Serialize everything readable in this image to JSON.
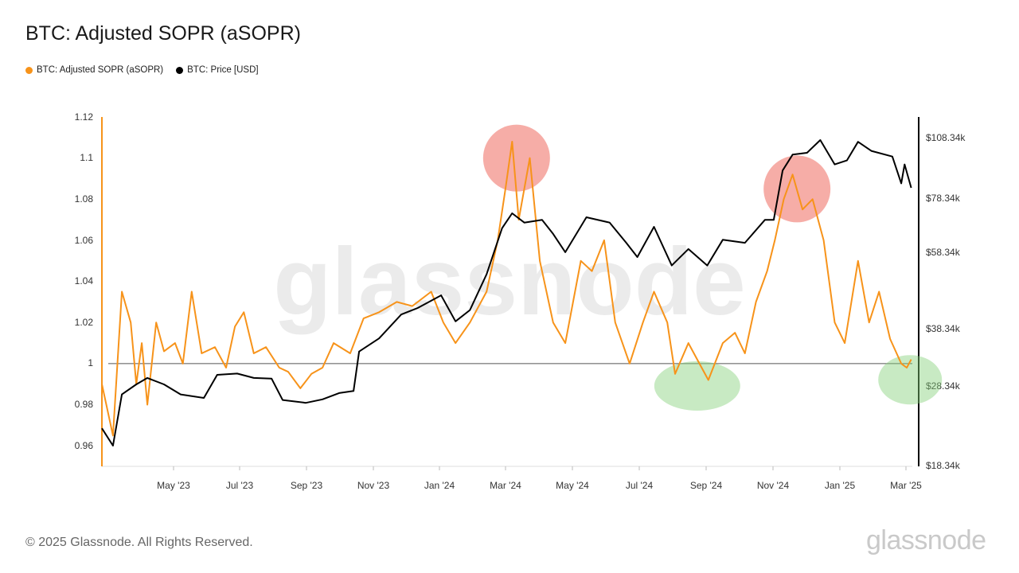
{
  "header": {
    "title": "BTC: Adjusted SOPR (aSOPR)"
  },
  "colors": {
    "sopr": "#f7931a",
    "price": "#000000",
    "high_marker": "#ee6a5f",
    "low_marker": "#84d07a",
    "baseline": "#555555"
  },
  "footer": {
    "copyright": "© 2025 Glassnode. All Rights Reserved.",
    "brand": "glassnode"
  },
  "watermark": "glassnode",
  "chart_data": {
    "type": "line",
    "title": "BTC: Adjusted SOPR (aSOPR)",
    "legend_position": "top-left",
    "grid": false,
    "x_ticks": [
      "May '23",
      "Jul '23",
      "Sep '23",
      "Nov '23",
      "Jan '24",
      "Mar '24",
      "May '24",
      "Jul '24",
      "Sep '24",
      "Nov '24",
      "Jan '25",
      "Mar '25"
    ],
    "x_range": [
      "2023-03-10",
      "2025-03-10"
    ],
    "y_left": {
      "ticks": [
        "1.12",
        "1.1",
        "1.08",
        "1.06",
        "1.04",
        "1.02",
        "1",
        "0.98",
        "0.96"
      ],
      "range": [
        0.95,
        1.12
      ]
    },
    "y_right": {
      "ticks": [
        "$108.34k",
        "$78.34k",
        "$58.34k",
        "$38.34k",
        "$28.34k",
        "$18.34k"
      ],
      "scale": "log",
      "range": [
        18340,
        120000
      ]
    },
    "reference_line": 1,
    "series": [
      {
        "name": "BTC: Adjusted SOPR (aSOPR)",
        "axis": "left",
        "points": [
          [
            "2023-03-10",
            0.99
          ],
          [
            "2023-03-20",
            0.965
          ],
          [
            "2023-03-28",
            1.035
          ],
          [
            "2023-04-05",
            1.02
          ],
          [
            "2023-04-10",
            0.99
          ],
          [
            "2023-04-15",
            1.01
          ],
          [
            "2023-04-20",
            0.98
          ],
          [
            "2023-04-28",
            1.02
          ],
          [
            "2023-05-05",
            1.006
          ],
          [
            "2023-05-15",
            1.01
          ],
          [
            "2023-05-22",
            1.0
          ],
          [
            "2023-05-30",
            1.035
          ],
          [
            "2023-06-08",
            1.005
          ],
          [
            "2023-06-20",
            1.008
          ],
          [
            "2023-06-30",
            0.998
          ],
          [
            "2023-07-08",
            1.018
          ],
          [
            "2023-07-16",
            1.025
          ],
          [
            "2023-07-25",
            1.005
          ],
          [
            "2023-08-05",
            1.008
          ],
          [
            "2023-08-17",
            0.998
          ],
          [
            "2023-08-25",
            0.996
          ],
          [
            "2023-09-05",
            0.988
          ],
          [
            "2023-09-15",
            0.995
          ],
          [
            "2023-09-25",
            0.998
          ],
          [
            "2023-10-05",
            1.01
          ],
          [
            "2023-10-20",
            1.005
          ],
          [
            "2023-11-01",
            1.022
          ],
          [
            "2023-11-15",
            1.025
          ],
          [
            "2023-12-01",
            1.03
          ],
          [
            "2023-12-15",
            1.028
          ],
          [
            "2024-01-01",
            1.035
          ],
          [
            "2024-01-12",
            1.02
          ],
          [
            "2024-01-23",
            1.01
          ],
          [
            "2024-02-05",
            1.02
          ],
          [
            "2024-02-20",
            1.035
          ],
          [
            "2024-03-01",
            1.06
          ],
          [
            "2024-03-08",
            1.085
          ],
          [
            "2024-03-14",
            1.108
          ],
          [
            "2024-03-20",
            1.07
          ],
          [
            "2024-03-30",
            1.1
          ],
          [
            "2024-04-08",
            1.05
          ],
          [
            "2024-04-20",
            1.02
          ],
          [
            "2024-05-01",
            1.01
          ],
          [
            "2024-05-15",
            1.05
          ],
          [
            "2024-05-25",
            1.045
          ],
          [
            "2024-06-05",
            1.06
          ],
          [
            "2024-06-15",
            1.02
          ],
          [
            "2024-06-28",
            1.0
          ],
          [
            "2024-07-10",
            1.02
          ],
          [
            "2024-07-20",
            1.035
          ],
          [
            "2024-08-01",
            1.02
          ],
          [
            "2024-08-08",
            0.995
          ],
          [
            "2024-08-20",
            1.01
          ],
          [
            "2024-08-30",
            1.0
          ],
          [
            "2024-09-07",
            0.992
          ],
          [
            "2024-09-20",
            1.01
          ],
          [
            "2024-10-01",
            1.015
          ],
          [
            "2024-10-10",
            1.005
          ],
          [
            "2024-10-20",
            1.03
          ],
          [
            "2024-10-30",
            1.045
          ],
          [
            "2024-11-06",
            1.06
          ],
          [
            "2024-11-14",
            1.08
          ],
          [
            "2024-11-22",
            1.092
          ],
          [
            "2024-12-01",
            1.075
          ],
          [
            "2024-12-10",
            1.08
          ],
          [
            "2024-12-20",
            1.06
          ],
          [
            "2024-12-30",
            1.02
          ],
          [
            "2025-01-08",
            1.01
          ],
          [
            "2025-01-20",
            1.05
          ],
          [
            "2025-01-30",
            1.02
          ],
          [
            "2025-02-08",
            1.035
          ],
          [
            "2025-02-18",
            1.012
          ],
          [
            "2025-02-28",
            1.0
          ],
          [
            "2025-03-05",
            0.998
          ],
          [
            "2025-03-09",
            1.002
          ]
        ]
      },
      {
        "name": "BTC: Price [USD]",
        "axis": "right",
        "points": [
          [
            "2023-03-10",
            22500
          ],
          [
            "2023-03-20",
            20500
          ],
          [
            "2023-03-28",
            27000
          ],
          [
            "2023-04-10",
            28500
          ],
          [
            "2023-04-20",
            29500
          ],
          [
            "2023-05-05",
            28500
          ],
          [
            "2023-05-20",
            27000
          ],
          [
            "2023-06-10",
            26500
          ],
          [
            "2023-06-22",
            30000
          ],
          [
            "2023-07-10",
            30200
          ],
          [
            "2023-07-25",
            29500
          ],
          [
            "2023-08-10",
            29400
          ],
          [
            "2023-08-20",
            26200
          ],
          [
            "2023-09-10",
            25800
          ],
          [
            "2023-09-25",
            26300
          ],
          [
            "2023-10-10",
            27200
          ],
          [
            "2023-10-23",
            27500
          ],
          [
            "2023-10-28",
            34000
          ],
          [
            "2023-11-15",
            36500
          ],
          [
            "2023-12-05",
            41500
          ],
          [
            "2023-12-20",
            43000
          ],
          [
            "2024-01-10",
            46000
          ],
          [
            "2024-01-23",
            40000
          ],
          [
            "2024-02-05",
            42500
          ],
          [
            "2024-02-20",
            51500
          ],
          [
            "2024-03-05",
            66000
          ],
          [
            "2024-03-14",
            71500
          ],
          [
            "2024-03-25",
            68000
          ],
          [
            "2024-04-10",
            69000
          ],
          [
            "2024-04-20",
            64000
          ],
          [
            "2024-05-01",
            58000
          ],
          [
            "2024-05-20",
            70000
          ],
          [
            "2024-06-10",
            68000
          ],
          [
            "2024-06-25",
            61000
          ],
          [
            "2024-07-05",
            56500
          ],
          [
            "2024-07-20",
            66500
          ],
          [
            "2024-08-05",
            54000
          ],
          [
            "2024-08-20",
            59000
          ],
          [
            "2024-09-06",
            54000
          ],
          [
            "2024-09-20",
            62000
          ],
          [
            "2024-10-10",
            61000
          ],
          [
            "2024-10-28",
            69000
          ],
          [
            "2024-11-05",
            69000
          ],
          [
            "2024-11-13",
            90000
          ],
          [
            "2024-11-22",
            98000
          ],
          [
            "2024-12-05",
            99000
          ],
          [
            "2024-12-17",
            106000
          ],
          [
            "2024-12-30",
            93000
          ],
          [
            "2025-01-10",
            95000
          ],
          [
            "2025-01-20",
            105000
          ],
          [
            "2025-02-01",
            100000
          ],
          [
            "2025-02-20",
            97000
          ],
          [
            "2025-02-28",
            84000
          ],
          [
            "2025-03-03",
            93000
          ],
          [
            "2025-03-09",
            82000
          ]
        ]
      }
    ],
    "annotations": [
      {
        "shape": "circle",
        "color": "#ee6a5f",
        "x": "2024-03-18",
        "y_left": 1.1,
        "meaning": "local top"
      },
      {
        "shape": "circle",
        "color": "#ee6a5f",
        "x": "2024-11-26",
        "y_left": 1.085,
        "meaning": "local top"
      },
      {
        "shape": "ellipse",
        "color": "#84d07a",
        "x": "2024-08-28",
        "y_left": 0.993,
        "meaning": "local bottom"
      },
      {
        "shape": "ellipse",
        "color": "#84d07a",
        "x": "2025-03-08",
        "y_left": 0.996,
        "meaning": "local bottom"
      }
    ]
  }
}
